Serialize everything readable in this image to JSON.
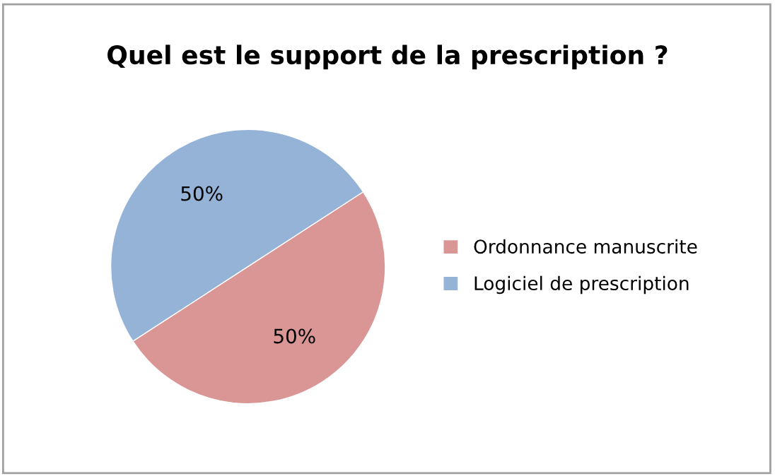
{
  "chart_data": {
    "type": "pie",
    "title": "Quel est le support de la prescription ?",
    "categories": [
      "Ordonnance manuscrite",
      "Logiciel de prescription"
    ],
    "values": [
      50,
      50
    ],
    "value_labels": [
      "50%",
      "50%"
    ],
    "colors": [
      "#d99694",
      "#95b3d7"
    ],
    "legend": "right"
  }
}
